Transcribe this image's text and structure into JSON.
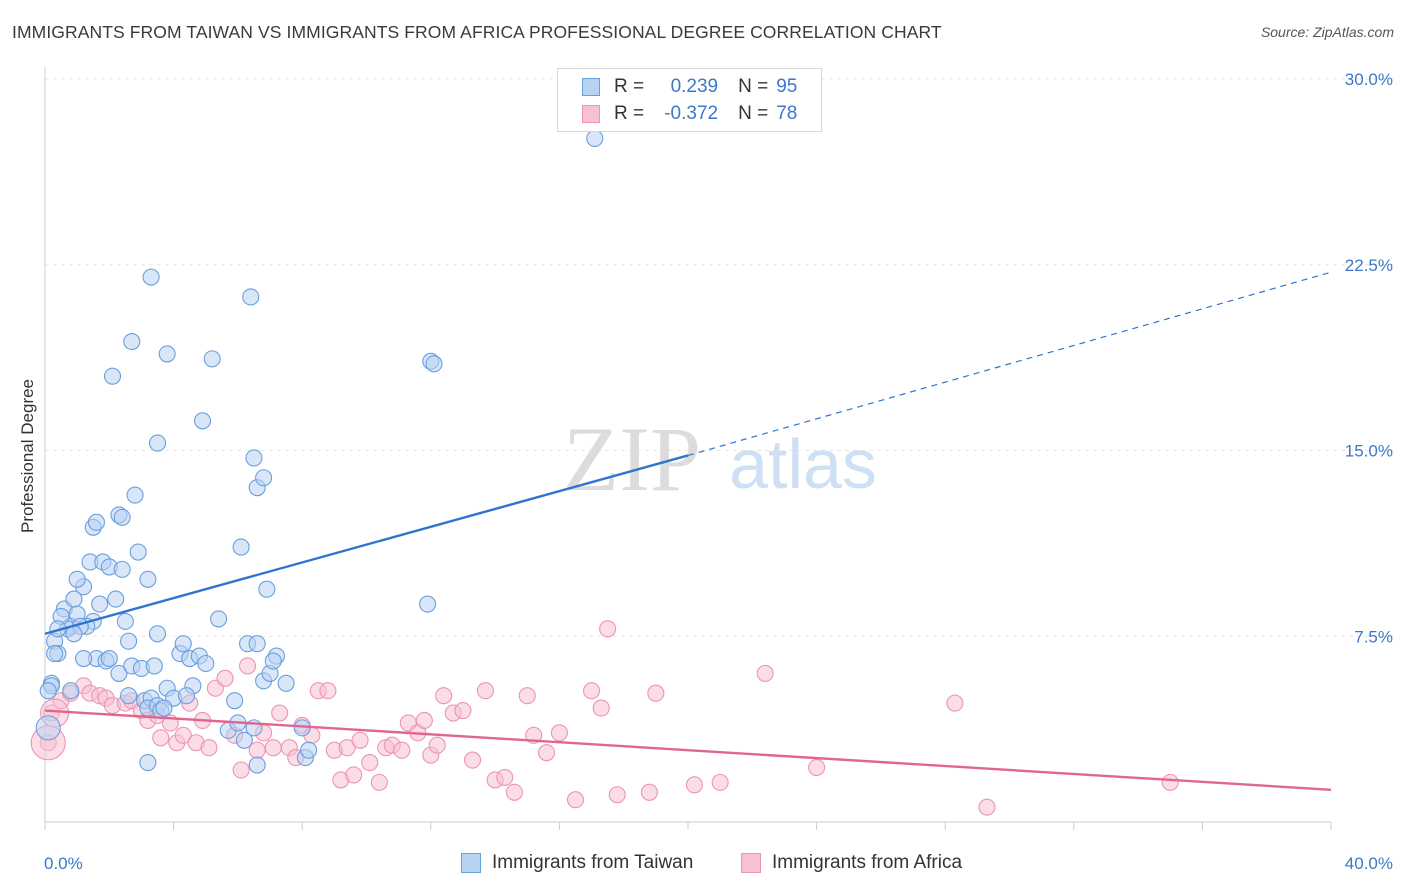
{
  "title": "IMMIGRANTS FROM TAIWAN VS IMMIGRANTS FROM AFRICA PROFESSIONAL DEGREE CORRELATION CHART",
  "source": "Source: ZipAtlas.com",
  "watermark": {
    "zip": "ZIP",
    "atlas": "atlas"
  },
  "legend": {
    "rows": [
      {
        "r_label": "R =",
        "r_value": "0.239",
        "n_label": "N =",
        "n_value": "95"
      },
      {
        "r_label": "R =",
        "r_value": "-0.372",
        "n_label": "N =",
        "n_value": "78"
      }
    ]
  },
  "colors": {
    "taiwan_fill": "#b8d2f2",
    "taiwan_stroke": "#6a9fde",
    "taiwan_line": "#2f74d0",
    "africa_fill": "#f6c1d3",
    "africa_stroke": "#ee93b3",
    "africa_line": "#e0668f",
    "tick_text": "#3b78c9",
    "grid": "#e6e6e6"
  },
  "chart_data": {
    "type": "scatter",
    "title": "IMMIGRANTS FROM TAIWAN VS IMMIGRANTS FROM AFRICA PROFESSIONAL DEGREE CORRELATION CHART",
    "xlabel": "",
    "ylabel": "Professional Degree",
    "xlim": [
      0,
      40
    ],
    "ylim": [
      0,
      30
    ],
    "x_tick_labels": [
      "0.0%",
      "40.0%"
    ],
    "y_ticks": [
      7.5,
      15.0,
      22.5,
      30.0
    ],
    "y_tick_labels": [
      "7.5%",
      "15.0%",
      "22.5%",
      "30.0%"
    ],
    "grid": true,
    "legend_position": "top-center",
    "series": [
      {
        "name": "Immigrants from Taiwan",
        "r": 0.239,
        "n": 95,
        "trend": {
          "x0": 0,
          "y0": 7.6,
          "x1": 20,
          "y1": 14.8,
          "dashed_to_x": 40,
          "dashed_to_y": 22.2
        },
        "points": [
          [
            0.3,
            7.3
          ],
          [
            0.4,
            6.8
          ],
          [
            0.2,
            5.6
          ],
          [
            0.6,
            8.6
          ],
          [
            0.8,
            7.9
          ],
          [
            1.0,
            8.4
          ],
          [
            0.9,
            9.0
          ],
          [
            1.2,
            9.5
          ],
          [
            1.4,
            10.5
          ],
          [
            1.5,
            8.1
          ],
          [
            1.3,
            7.9
          ],
          [
            1.8,
            10.5
          ],
          [
            2.0,
            10.3
          ],
          [
            2.2,
            9.0
          ],
          [
            2.5,
            8.1
          ],
          [
            2.4,
            10.2
          ],
          [
            2.6,
            7.3
          ],
          [
            1.6,
            6.6
          ],
          [
            1.9,
            6.5
          ],
          [
            2.3,
            6.0
          ],
          [
            2.7,
            6.3
          ],
          [
            3.0,
            6.2
          ],
          [
            3.1,
            4.9
          ],
          [
            3.3,
            5.0
          ],
          [
            3.2,
            4.6
          ],
          [
            3.4,
            6.3
          ],
          [
            3.5,
            4.7
          ],
          [
            3.6,
            4.5
          ],
          [
            3.8,
            5.4
          ],
          [
            4.0,
            5.0
          ],
          [
            4.2,
            6.8
          ],
          [
            4.3,
            7.2
          ],
          [
            4.5,
            6.6
          ],
          [
            4.6,
            5.5
          ],
          [
            4.8,
            6.7
          ],
          [
            5.0,
            6.4
          ],
          [
            5.4,
            8.2
          ],
          [
            5.7,
            3.7
          ],
          [
            6.0,
            4.0
          ],
          [
            6.2,
            3.3
          ],
          [
            6.3,
            7.2
          ],
          [
            6.6,
            7.2
          ],
          [
            6.8,
            5.7
          ],
          [
            7.0,
            6.0
          ],
          [
            7.2,
            6.7
          ],
          [
            7.5,
            5.6
          ],
          [
            8.0,
            3.8
          ],
          [
            8.1,
            2.6
          ],
          [
            8.2,
            2.9
          ],
          [
            3.2,
            2.4
          ],
          [
            1.5,
            11.9
          ],
          [
            1.6,
            12.1
          ],
          [
            2.3,
            12.4
          ],
          [
            2.4,
            12.3
          ],
          [
            2.8,
            13.2
          ],
          [
            2.9,
            10.9
          ],
          [
            3.2,
            9.8
          ],
          [
            3.5,
            7.6
          ],
          [
            3.3,
            22.0
          ],
          [
            3.8,
            18.9
          ],
          [
            2.1,
            18.0
          ],
          [
            2.7,
            19.4
          ],
          [
            5.2,
            18.7
          ],
          [
            4.9,
            16.2
          ],
          [
            3.5,
            15.3
          ],
          [
            6.4,
            21.2
          ],
          [
            6.5,
            14.7
          ],
          [
            6.6,
            13.5
          ],
          [
            6.8,
            13.9
          ],
          [
            6.1,
            11.1
          ],
          [
            6.9,
            9.4
          ],
          [
            12.0,
            18.6
          ],
          [
            12.1,
            18.5
          ],
          [
            11.9,
            8.8
          ],
          [
            17.1,
            27.6
          ],
          [
            0.2,
            5.5
          ],
          [
            0.1,
            5.3
          ],
          [
            0.3,
            6.8
          ],
          [
            0.7,
            7.8
          ],
          [
            1.1,
            7.9
          ],
          [
            1.7,
            8.8
          ],
          [
            2.0,
            6.6
          ],
          [
            1.2,
            6.6
          ],
          [
            0.5,
            8.3
          ],
          [
            0.9,
            7.6
          ],
          [
            0.4,
            7.8
          ],
          [
            2.6,
            5.1
          ],
          [
            3.7,
            4.6
          ],
          [
            4.4,
            5.1
          ],
          [
            5.9,
            4.9
          ],
          [
            6.5,
            3.8
          ],
          [
            6.6,
            2.3
          ],
          [
            7.1,
            6.5
          ],
          [
            0.8,
            5.3
          ],
          [
            1.0,
            9.8
          ]
        ]
      },
      {
        "name": "Immigrants from Africa",
        "r": -0.372,
        "n": 78,
        "trend": {
          "x0": 0,
          "y0": 4.5,
          "x1": 40,
          "y1": 1.3
        },
        "points": [
          [
            0.1,
            3.2
          ],
          [
            0.2,
            4.4
          ],
          [
            0.5,
            4.9
          ],
          [
            0.8,
            5.2
          ],
          [
            1.2,
            5.5
          ],
          [
            1.4,
            5.2
          ],
          [
            1.7,
            5.1
          ],
          [
            1.9,
            5.0
          ],
          [
            2.1,
            4.7
          ],
          [
            2.5,
            4.8
          ],
          [
            2.7,
            4.9
          ],
          [
            3.0,
            4.5
          ],
          [
            3.2,
            4.1
          ],
          [
            3.5,
            4.3
          ],
          [
            3.6,
            3.4
          ],
          [
            3.9,
            4.0
          ],
          [
            4.1,
            3.2
          ],
          [
            4.3,
            3.5
          ],
          [
            4.5,
            4.8
          ],
          [
            4.7,
            3.2
          ],
          [
            4.9,
            4.1
          ],
          [
            5.1,
            3.0
          ],
          [
            5.3,
            5.4
          ],
          [
            5.6,
            5.8
          ],
          [
            5.9,
            3.5
          ],
          [
            6.1,
            2.1
          ],
          [
            6.3,
            6.3
          ],
          [
            6.6,
            2.9
          ],
          [
            6.8,
            3.6
          ],
          [
            7.1,
            3.0
          ],
          [
            7.3,
            4.4
          ],
          [
            7.6,
            3.0
          ],
          [
            7.8,
            2.6
          ],
          [
            8.0,
            3.9
          ],
          [
            8.3,
            3.5
          ],
          [
            8.5,
            5.3
          ],
          [
            8.8,
            5.3
          ],
          [
            9.0,
            2.9
          ],
          [
            9.2,
            1.7
          ],
          [
            9.4,
            3.0
          ],
          [
            9.6,
            1.9
          ],
          [
            9.8,
            3.3
          ],
          [
            10.1,
            2.4
          ],
          [
            10.4,
            1.6
          ],
          [
            10.6,
            3.0
          ],
          [
            10.8,
            3.1
          ],
          [
            11.1,
            2.9
          ],
          [
            11.3,
            4.0
          ],
          [
            11.6,
            3.6
          ],
          [
            11.8,
            4.1
          ],
          [
            12.0,
            2.7
          ],
          [
            12.2,
            3.1
          ],
          [
            12.4,
            5.1
          ],
          [
            12.7,
            4.4
          ],
          [
            13.0,
            4.5
          ],
          [
            13.3,
            2.5
          ],
          [
            13.7,
            5.3
          ],
          [
            14.0,
            1.7
          ],
          [
            14.3,
            1.8
          ],
          [
            14.6,
            1.2
          ],
          [
            15.0,
            5.1
          ],
          [
            15.2,
            3.5
          ],
          [
            15.6,
            2.8
          ],
          [
            16.0,
            3.6
          ],
          [
            16.5,
            0.9
          ],
          [
            17.0,
            5.3
          ],
          [
            17.3,
            4.6
          ],
          [
            17.5,
            7.8
          ],
          [
            17.8,
            1.1
          ],
          [
            18.8,
            1.2
          ],
          [
            19.0,
            5.2
          ],
          [
            20.2,
            1.5
          ],
          [
            21.0,
            1.6
          ],
          [
            22.4,
            6.0
          ],
          [
            24.0,
            2.2
          ],
          [
            28.3,
            4.8
          ],
          [
            29.3,
            0.6
          ],
          [
            35.0,
            1.6
          ]
        ]
      }
    ]
  }
}
